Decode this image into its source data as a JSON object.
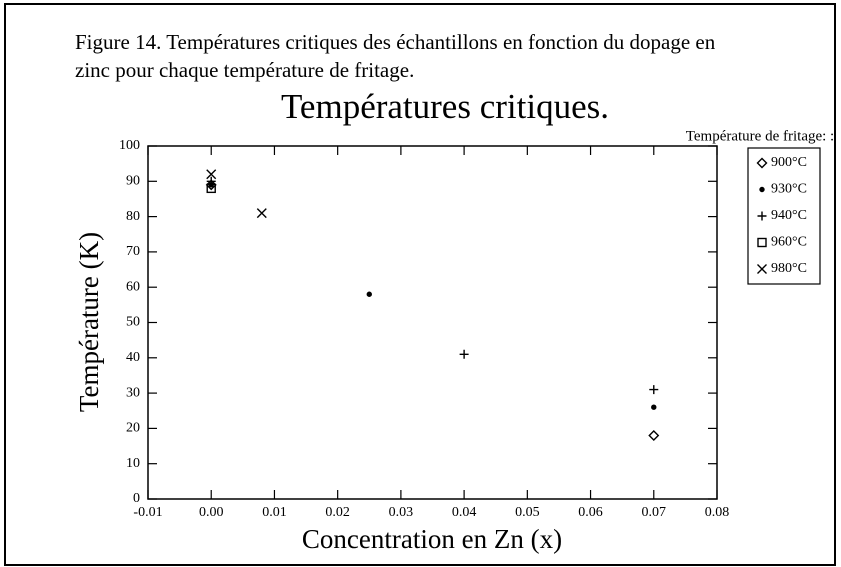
{
  "caption": [
    "Figure 14. Températures critiques des échantillons en fonction du dopage en",
    "zinc pour chaque température de fritage."
  ],
  "chart_data": {
    "type": "scatter",
    "title": "Températures critiques.",
    "x_label": "Concentration en Zn (x)",
    "y_label": "Température (K)",
    "legend_title": "Température de fritage: :",
    "legend": "right",
    "xlim": [
      -0.01,
      0.08
    ],
    "xticks": [
      -0.01,
      {
        "value": 0,
        "label": "0.00"
      },
      0.01,
      0.02,
      0.03,
      0.04,
      0.05,
      0.06,
      0.07,
      0.08
    ],
    "ylim": [
      0,
      100
    ],
    "yticks": [
      0,
      10,
      20,
      30,
      40,
      50,
      60,
      70,
      80,
      90,
      100
    ],
    "series": [
      {
        "name": "900°C",
        "color": "#000000",
        "marker": "diamond",
        "x": [
          0,
          0.07
        ],
        "values": [
          89,
          18
        ]
      },
      {
        "name": "930°C",
        "color": "#000000",
        "marker": "dot",
        "x": [
          0,
          0.025,
          0.07
        ],
        "values": [
          89,
          58,
          26
        ]
      },
      {
        "name": "940°C",
        "color": "#000000",
        "marker": "plus",
        "x": [
          0,
          0.04,
          0.07
        ],
        "values": [
          90,
          41,
          31
        ]
      },
      {
        "name": "960°C",
        "color": "#000000",
        "marker": "square",
        "x": [
          0
        ],
        "values": [
          88
        ]
      },
      {
        "name": "980°C",
        "color": "#000000",
        "marker": "cross",
        "x": [
          0,
          0.008
        ],
        "values": [
          92,
          81
        ]
      }
    ]
  }
}
